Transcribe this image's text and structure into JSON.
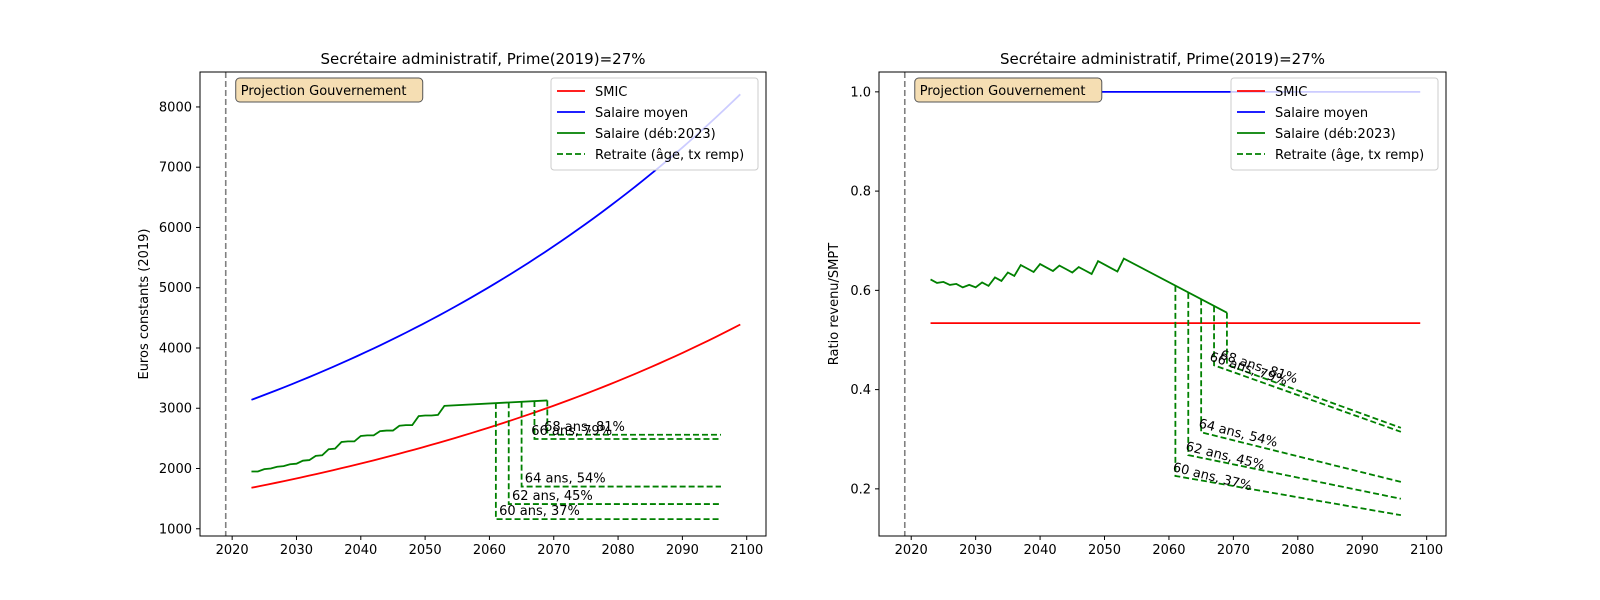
{
  "colors": {
    "smic": "#ff0000",
    "salaire_moyen": "#0000ff",
    "salaire": "#008000",
    "retraite": "#008000",
    "vline": "#808080",
    "annotation_box_fill": "#f5deb3",
    "annotation_box_stroke": "#555555"
  },
  "chart_data": [
    {
      "type": "line",
      "title": "Secrétaire administratif, Prime(2019)=27%",
      "xlabel": "",
      "ylabel": "Euros constants (2019)",
      "xlim": [
        2015,
        2103
      ],
      "ylim": [
        880,
        8580
      ],
      "xticks": [
        2020,
        2030,
        2040,
        2050,
        2060,
        2070,
        2080,
        2090,
        2100
      ],
      "yticks": [
        1000,
        2000,
        3000,
        4000,
        5000,
        6000,
        7000,
        8000
      ],
      "vline_x": 2019,
      "annotation": "Projection Gouvernement",
      "legend_position": "top-right",
      "legend": [
        "SMIC",
        "Salaire moyen",
        "Salaire (déb:2023)",
        "Retraite (âge, tx remp)"
      ],
      "series": [
        {
          "name": "SMIC",
          "style": "solid",
          "color_key": "smic",
          "x": [
            2023,
            2099
          ],
          "growth": "exponential",
          "y_start": 1680,
          "y_end": 4390
        },
        {
          "name": "Salaire moyen",
          "style": "solid",
          "color_key": "salaire_moyen",
          "x": [
            2023,
            2099
          ],
          "growth": "exponential",
          "y_start": 3140,
          "y_end": 8210
        },
        {
          "name": "Salaire (déb:2023)",
          "style": "solid",
          "color_key": "salaire",
          "points": [
            [
              2023,
              1950
            ],
            [
              2024,
              1950
            ],
            [
              2025,
              1990
            ],
            [
              2026,
              2000
            ],
            [
              2027,
              2030
            ],
            [
              2028,
              2040
            ],
            [
              2029,
              2070
            ],
            [
              2030,
              2080
            ],
            [
              2031,
              2130
            ],
            [
              2032,
              2140
            ],
            [
              2033,
              2210
            ],
            [
              2034,
              2220
            ],
            [
              2035,
              2320
            ],
            [
              2036,
              2330
            ],
            [
              2037,
              2440
            ],
            [
              2038,
              2450
            ],
            [
              2039,
              2450
            ],
            [
              2040,
              2540
            ],
            [
              2041,
              2550
            ],
            [
              2042,
              2550
            ],
            [
              2043,
              2620
            ],
            [
              2044,
              2630
            ],
            [
              2045,
              2630
            ],
            [
              2046,
              2710
            ],
            [
              2047,
              2720
            ],
            [
              2048,
              2720
            ],
            [
              2049,
              2870
            ],
            [
              2050,
              2880
            ],
            [
              2051,
              2880
            ],
            [
              2052,
              2890
            ],
            [
              2053,
              3040
            ],
            [
              2069,
              3130
            ]
          ]
        },
        {
          "name": "Retraite (âge, tx remp)",
          "style": "dashed",
          "color_key": "retraite",
          "pensions": [
            {
              "label": "60 ans, 37%",
              "age_year": 2061,
              "wage_at_age": 3090,
              "pension_start": 1160,
              "pension_end": 1160,
              "x_end": 2096
            },
            {
              "label": "62 ans, 45%",
              "age_year": 2063,
              "wage_at_age": 3100,
              "pension_start": 1410,
              "pension_end": 1410,
              "x_end": 2096
            },
            {
              "label": "64 ans, 54%",
              "age_year": 2065,
              "wage_at_age": 3110,
              "pension_start": 1700,
              "pension_end": 1700,
              "x_end": 2096
            },
            {
              "label": "66 ans, 79%",
              "age_year": 2067,
              "wage_at_age": 3120,
              "pension_start": 2490,
              "pension_end": 2490,
              "x_end": 2096
            },
            {
              "label": "68 ans, 81%",
              "age_year": 2069,
              "wage_at_age": 3130,
              "pension_start": 2560,
              "pension_end": 2560,
              "x_end": 2096
            }
          ]
        }
      ]
    },
    {
      "type": "line",
      "title": "Secrétaire administratif, Prime(2019)=27%",
      "xlabel": "",
      "ylabel": "Ratio revenu/SMPT",
      "xlim": [
        2015,
        2103
      ],
      "ylim": [
        0.105,
        1.04
      ],
      "xticks": [
        2020,
        2030,
        2040,
        2050,
        2060,
        2070,
        2080,
        2090,
        2100
      ],
      "yticks": [
        "0.2",
        "0.4",
        "0.6",
        "0.8",
        "1.0"
      ],
      "vline_x": 2019,
      "annotation": "Projection Gouvernement",
      "legend_position": "top-right",
      "legend": [
        "SMIC",
        "Salaire moyen",
        "Salaire (déb:2023)",
        "Retraite (âge, tx remp)"
      ],
      "series": [
        {
          "name": "SMIC",
          "style": "solid",
          "color_key": "smic",
          "points": [
            [
              2023,
              0.534
            ],
            [
              2099,
              0.534
            ]
          ]
        },
        {
          "name": "Salaire moyen",
          "style": "solid",
          "color_key": "salaire_moyen",
          "points": [
            [
              2023,
              1.0
            ],
            [
              2099,
              1.0
            ]
          ]
        },
        {
          "name": "Salaire (déb:2023)",
          "style": "solid",
          "color_key": "salaire",
          "points": [
            [
              2023,
              0.622
            ],
            [
              2024,
              0.615
            ],
            [
              2025,
              0.617
            ],
            [
              2026,
              0.611
            ],
            [
              2027,
              0.613
            ],
            [
              2028,
              0.606
            ],
            [
              2029,
              0.611
            ],
            [
              2030,
              0.606
            ],
            [
              2031,
              0.616
            ],
            [
              2032,
              0.609
            ],
            [
              2033,
              0.626
            ],
            [
              2034,
              0.619
            ],
            [
              2035,
              0.636
            ],
            [
              2036,
              0.629
            ],
            [
              2037,
              0.651
            ],
            [
              2038,
              0.644
            ],
            [
              2039,
              0.637
            ],
            [
              2040,
              0.653
            ],
            [
              2041,
              0.646
            ],
            [
              2042,
              0.639
            ],
            [
              2043,
              0.65
            ],
            [
              2044,
              0.643
            ],
            [
              2045,
              0.636
            ],
            [
              2046,
              0.647
            ],
            [
              2047,
              0.64
            ],
            [
              2048,
              0.633
            ],
            [
              2049,
              0.659
            ],
            [
              2050,
              0.652
            ],
            [
              2051,
              0.645
            ],
            [
              2052,
              0.638
            ],
            [
              2053,
              0.664
            ],
            [
              2069,
              0.555
            ]
          ]
        },
        {
          "name": "Retraite (âge, tx remp)",
          "style": "dashed",
          "color_key": "retraite",
          "pensions": [
            {
              "label": "60 ans, 37%",
              "age_year": 2061,
              "wage_at_age": 0.609,
              "pension_start": 0.226,
              "pension_end": 0.147,
              "x_end": 2096
            },
            {
              "label": "62 ans, 45%",
              "age_year": 2063,
              "wage_at_age": 0.595,
              "pension_start": 0.268,
              "pension_end": 0.18,
              "x_end": 2096
            },
            {
              "label": "64 ans, 54%",
              "age_year": 2065,
              "wage_at_age": 0.582,
              "pension_start": 0.314,
              "pension_end": 0.214,
              "x_end": 2096
            },
            {
              "label": "66 ans, 79%",
              "age_year": 2067,
              "wage_at_age": 0.568,
              "pension_start": 0.449,
              "pension_end": 0.315,
              "x_end": 2096
            },
            {
              "label": "68 ans, 81%",
              "age_year": 2069,
              "wage_at_age": 0.555,
              "pension_start": 0.45,
              "pension_end": 0.323,
              "x_end": 2096
            }
          ]
        }
      ]
    }
  ]
}
